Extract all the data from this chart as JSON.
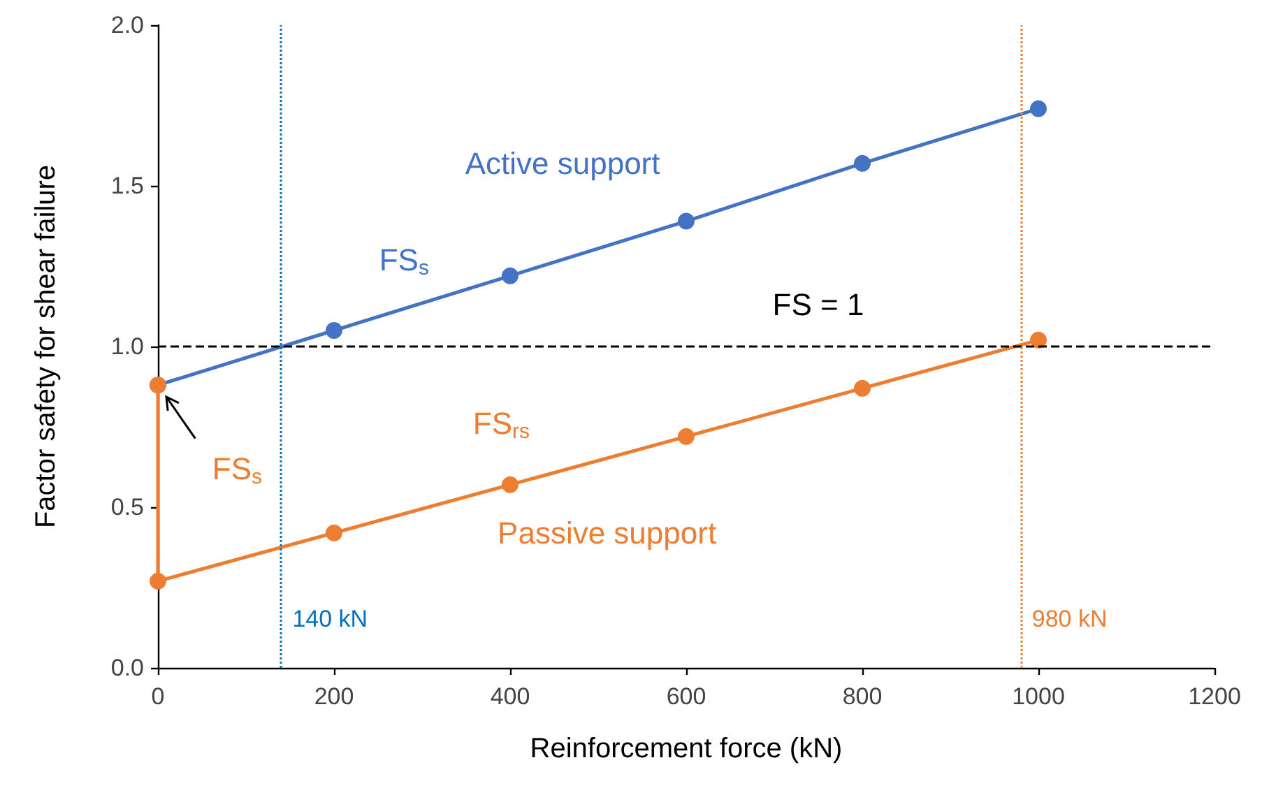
{
  "chart_data": {
    "type": "line",
    "xlabel": "Reinforcement force (kN)",
    "ylabel": "Factor safety for shear failure",
    "series": [
      {
        "color": "#4472c4",
        "x": [
          0,
          200,
          400,
          600,
          800,
          1000
        ],
        "values": [
          0.88,
          1.05,
          1.22,
          1.39,
          1.57,
          1.74
        ]
      },
      {
        "color": "#ed7d31",
        "x": [
          0,
          0,
          200,
          400,
          600,
          800,
          1000
        ],
        "values": [
          0.88,
          0.27,
          0.42,
          0.57,
          0.72,
          0.87,
          1.02
        ]
      }
    ],
    "xlim": [
      0,
      1200
    ],
    "xticks": [
      0,
      200,
      400,
      600,
      800,
      1000,
      1200
    ],
    "ylim": [
      0,
      2.0
    ],
    "yticks": [
      {
        "value": 0,
        "label": "0.0"
      },
      {
        "value": 0.5,
        "label": "0.5"
      },
      {
        "value": 1.0,
        "label": "1.0"
      },
      {
        "value": 1.5,
        "label": "1.5"
      },
      {
        "value": 2.0,
        "label": "2.0"
      }
    ],
    "ref_lines": [
      {
        "axis": "y",
        "value": 1.0,
        "color": "#000000",
        "line_style": "dashed"
      },
      {
        "axis": "x",
        "value": 140,
        "label": "140 kN",
        "color": "#0070c0",
        "line_style": "dotted"
      },
      {
        "axis": "x",
        "value": 980,
        "label": "980 kN",
        "color": "#ed7d31",
        "line_style": "dotted"
      }
    ],
    "annotations": [
      "Active support",
      "FS$_{s}$",
      "FS = 1",
      "FS$_{rs}$",
      "Passive support",
      "FS$_{s}$"
    ],
    "marker": "circle",
    "line_style": "solid",
    "grid": false
  }
}
